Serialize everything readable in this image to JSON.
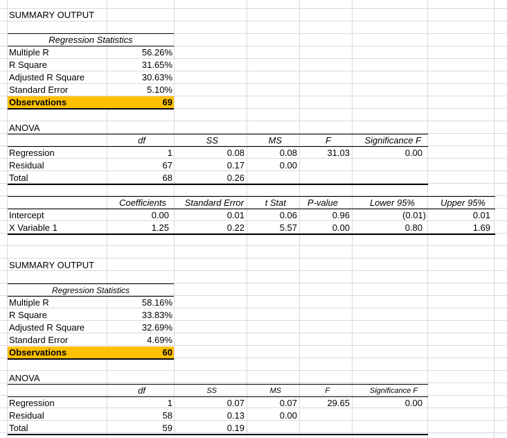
{
  "block1": {
    "title": "SUMMARY OUTPUT",
    "reg_stats_header": "Regression Statistics",
    "stats": [
      {
        "label": "Multiple R",
        "value": "56.26%"
      },
      {
        "label": "R Square",
        "value": "31.65%"
      },
      {
        "label": "Adjusted R Square",
        "value": "30.63%"
      },
      {
        "label": "Standard Error",
        "value": "5.10%"
      },
      {
        "label": "Observations",
        "value": "69"
      }
    ],
    "anova_title": "ANOVA",
    "anova_headers": [
      "df",
      "SS",
      "MS",
      "F",
      "Significance F"
    ],
    "anova_rows": [
      {
        "label": "Regression",
        "df": "1",
        "ss": "0.08",
        "ms": "0.08",
        "f": "31.03",
        "sig": "0.00"
      },
      {
        "label": "Residual",
        "df": "67",
        "ss": "0.17",
        "ms": "0.00",
        "f": "",
        "sig": ""
      },
      {
        "label": "Total",
        "df": "68",
        "ss": "0.26",
        "ms": "",
        "f": "",
        "sig": ""
      }
    ],
    "coef_headers": [
      "Coefficients",
      "Standard Error",
      "t Stat",
      "P-value",
      "Lower 95%",
      "Upper 95%"
    ],
    "coef_rows": [
      {
        "label": "Intercept",
        "coef": "0.00",
        "se": "0.01",
        "t": "0.06",
        "p": "0.96",
        "lower": "(0.01)",
        "upper": "0.01"
      },
      {
        "label": "X Variable 1",
        "coef": "1.25",
        "se": "0.22",
        "t": "5.57",
        "p": "0.00",
        "lower": "0.80",
        "upper": "1.69"
      }
    ]
  },
  "block2": {
    "title": "SUMMARY OUTPUT",
    "reg_stats_header": "Regression Statistics",
    "stats": [
      {
        "label": "Multiple R",
        "value": "58.16%"
      },
      {
        "label": "R Square",
        "value": "33.83%"
      },
      {
        "label": "Adjusted R Square",
        "value": "32.69%"
      },
      {
        "label": "Standard Error",
        "value": "4.69%"
      },
      {
        "label": "Observations",
        "value": "60"
      }
    ],
    "anova_title": "ANOVA",
    "anova_headers": [
      "df",
      "SS",
      "MS",
      "F",
      "Significance F"
    ],
    "anova_rows": [
      {
        "label": "Regression",
        "df": "1",
        "ss": "0.07",
        "ms": "0.07",
        "f": "29.65",
        "sig": "0.00"
      },
      {
        "label": "Residual",
        "df": "58",
        "ss": "0.13",
        "ms": "0.00",
        "f": "",
        "sig": ""
      },
      {
        "label": "Total",
        "df": "59",
        "ss": "0.19",
        "ms": "",
        "f": "",
        "sig": ""
      }
    ]
  },
  "colors": {
    "highlight": "#ffc000",
    "gridline": "#d9d9d9"
  }
}
